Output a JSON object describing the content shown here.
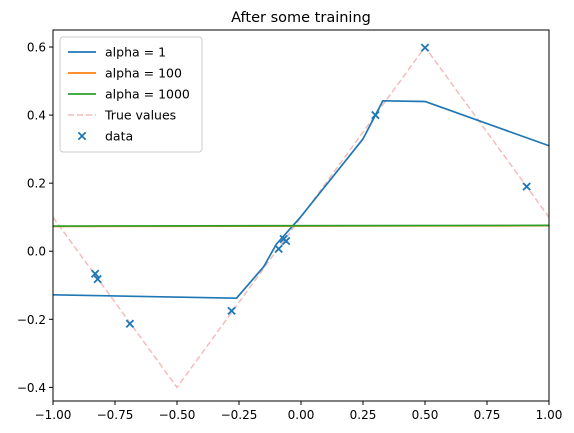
{
  "chart_data": {
    "type": "line",
    "title": "After some training",
    "xlabel": "",
    "ylabel": "",
    "xlim": [
      -1.0,
      1.0
    ],
    "ylim": [
      -0.44,
      0.65
    ],
    "xticks": [
      -1.0,
      -0.75,
      -0.5,
      -0.25,
      0.0,
      0.25,
      0.5,
      0.75,
      1.0
    ],
    "xtick_labels": [
      "−1.00",
      "−0.75",
      "−0.50",
      "−0.25",
      "0.00",
      "0.25",
      "0.50",
      "0.75",
      "1.00"
    ],
    "yticks": [
      -0.4,
      -0.2,
      0.0,
      0.2,
      0.4,
      0.6
    ],
    "ytick_labels": [
      "−0.4",
      "−0.2",
      "0.0",
      "0.2",
      "0.4",
      "0.6"
    ],
    "grid": false,
    "legend_position": "top-left",
    "series": [
      {
        "name": "alpha = 1",
        "kind": "line",
        "color": "#1f77b4",
        "x": [
          -1.0,
          -0.26,
          -0.15,
          -0.1,
          0.0,
          0.25,
          0.33,
          0.5,
          1.0
        ],
        "y": [
          -0.128,
          -0.138,
          -0.045,
          0.02,
          0.102,
          0.33,
          0.442,
          0.44,
          0.31
        ]
      },
      {
        "name": "alpha = 100",
        "kind": "line",
        "color": "#ff7f0e",
        "x": [
          -1.0,
          1.0
        ],
        "y": [
          0.073,
          0.075
        ]
      },
      {
        "name": "alpha = 1000",
        "kind": "line",
        "color": "#2ca02c",
        "x": [
          -1.0,
          1.0
        ],
        "y": [
          0.074,
          0.076
        ]
      },
      {
        "name": "True values",
        "kind": "dashed",
        "color": "#f4bcbc",
        "x": [
          -1.0,
          -0.5,
          0.5,
          1.0
        ],
        "y": [
          0.1,
          -0.4,
          0.6,
          0.1
        ]
      },
      {
        "name": "data",
        "kind": "scatter",
        "color": "#1f77b4",
        "x": [
          -0.83,
          -0.82,
          -0.69,
          -0.28,
          -0.09,
          -0.07,
          -0.06,
          0.3,
          0.5,
          0.91
        ],
        "y": [
          -0.066,
          -0.082,
          -0.213,
          -0.175,
          0.007,
          0.036,
          0.03,
          0.4,
          0.598,
          0.19
        ]
      }
    ]
  }
}
